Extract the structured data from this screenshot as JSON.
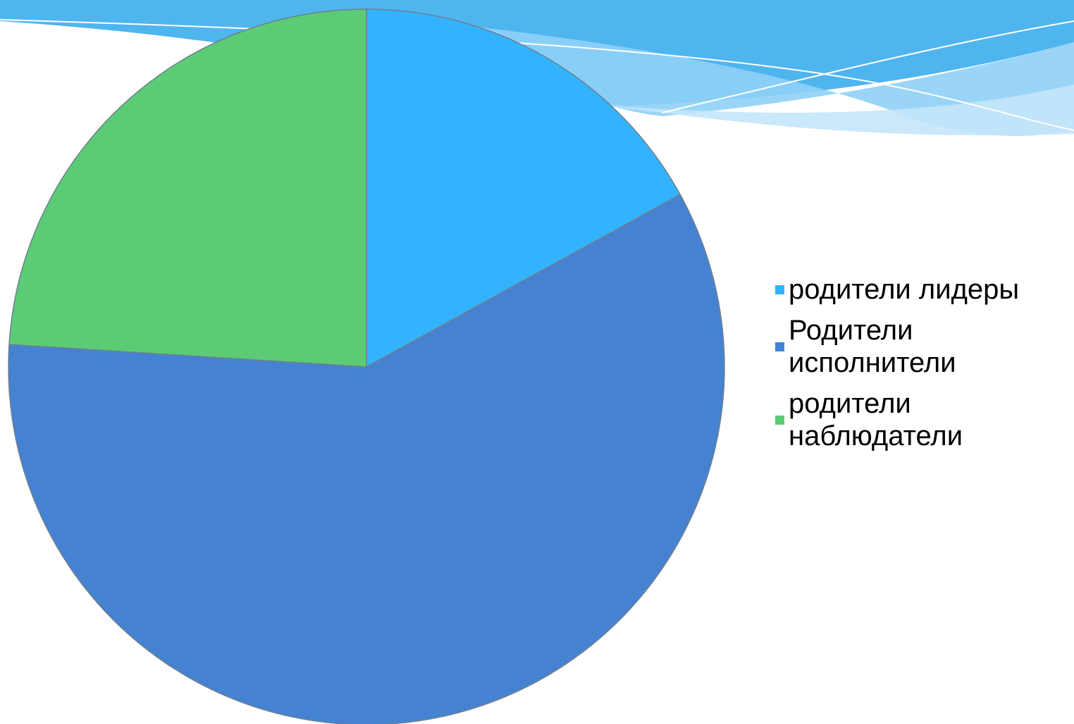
{
  "chart_data": {
    "type": "pie",
    "categories": [
      "родители лидеры",
      "Родители исполнители",
      "родители наблюдатели"
    ],
    "values": [
      17,
      59,
      24
    ],
    "colors": [
      "#33b3ff",
      "#4583d2",
      "#5bcc75"
    ],
    "legend_position": "right",
    "title": "",
    "start_angle_deg": 0,
    "direction": "clockwise"
  },
  "legend": {
    "items": [
      {
        "label": "родители лидеры",
        "color": "#33b3ff"
      },
      {
        "label": "Родители исполнители",
        "color": "#4583d2"
      },
      {
        "label": "родители наблюдатели",
        "color": "#5bcc75"
      }
    ]
  },
  "theme": {
    "wave_colors": [
      "#4fb5ef",
      "#8fd0f7",
      "#c4e6fa"
    ]
  }
}
